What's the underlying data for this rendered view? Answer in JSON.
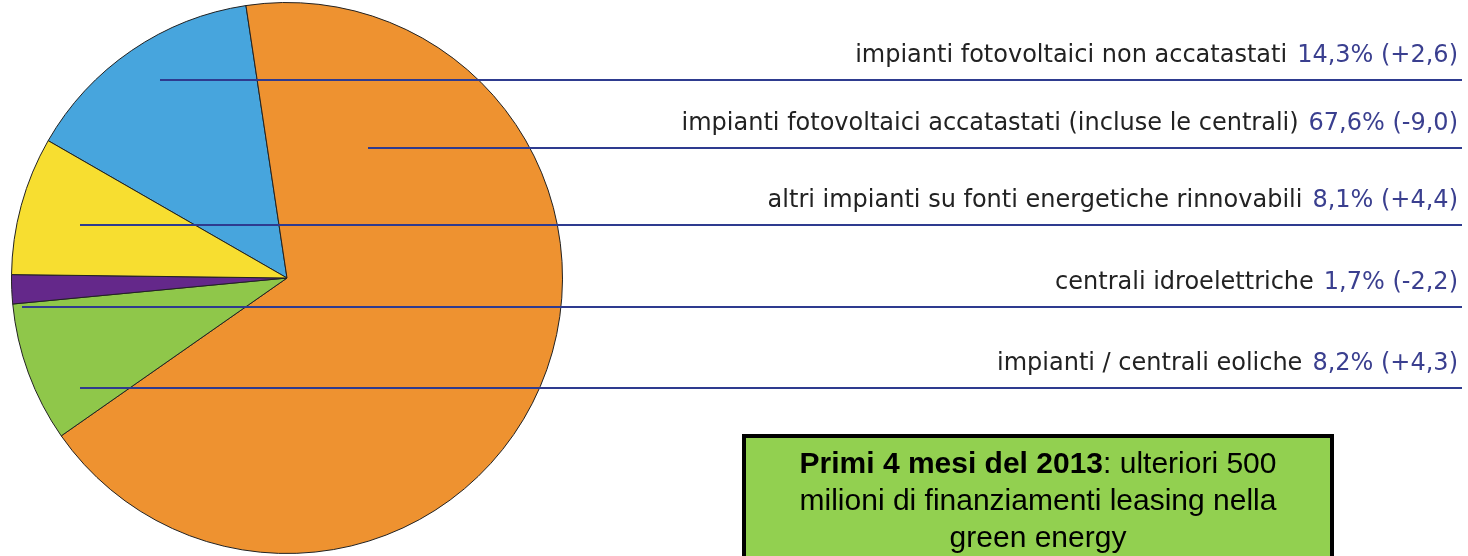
{
  "chart_data": {
    "type": "pie",
    "categories": [
      "impianti fotovoltaici non accatastati",
      "impianti fotovoltaici accatastati (incluse le centrali)",
      "impianti / centrali eoliche",
      "centrali idroelettriche",
      "altri impianti su fonti energetiche rinnovabili"
    ],
    "values": [
      14.3,
      67.6,
      8.2,
      1.7,
      8.1
    ],
    "colors": [
      "#47a5dd",
      "#ee9230",
      "#8fc74a",
      "#64288a",
      "#f7de30"
    ],
    "value_labels": [
      "14,3% (+2,6)",
      "67,6% (-9,0)",
      "8,2% (+4,3)",
      "1,7% (-2,2)",
      "8,1% (+4,4)"
    ],
    "legend": false,
    "annotations": [
      "Primi 4 mesi del 2013: ulteriori 500 milioni di finanziamenti leasing nella green energy"
    ]
  }
}
